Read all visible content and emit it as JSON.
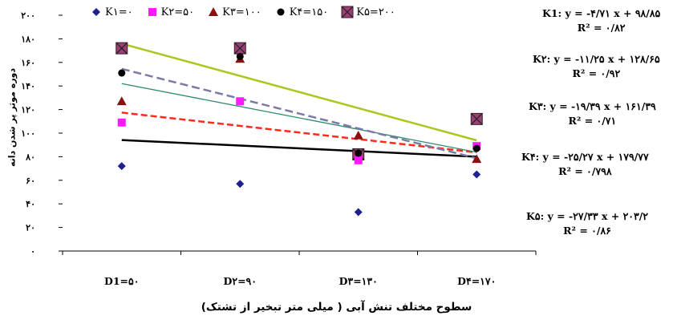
{
  "chart_data": {
    "type": "scatter",
    "x_axis_title": "سطوح مختلف تنش آبی ( میلی متر تبخیر از تشتک)",
    "y_axis_title": "دوره موثر پر شدن دانه",
    "categories": [
      "D1=۵۰",
      "D۲=۹۰",
      "D۳=۱۳۰",
      "D۴=۱۷۰"
    ],
    "yticks": [
      "۰",
      "۲۰",
      "۴۰",
      "۶۰",
      "۸۰",
      "۱۰۰",
      "۱۲۰",
      "۱۴۰",
      "۱۶۰",
      "۱۸۰",
      "۲۰۰"
    ],
    "ylim": [
      0,
      200
    ],
    "series": [
      {
        "name": "K۱=۰",
        "marker": "diamond",
        "color": "#1f1f8f",
        "values": [
          72,
          57,
          33,
          65
        ],
        "trend": {
          "slope": -4.71,
          "intercept": 98.85,
          "color": "#000000",
          "dash": "none"
        },
        "equation": "K1: y = -۴/۷۱ x + ۹۸/۸۵",
        "r2": "R² = ۰/۸۲"
      },
      {
        "name": "K۲=۵۰",
        "marker": "square",
        "color": "#ff19ff",
        "values": [
          109,
          127,
          77,
          89
        ],
        "trend": {
          "slope": -11.25,
          "intercept": 128.65,
          "color": "#ff2a1a",
          "dash": "8,4"
        },
        "equation": "K۲: y = -۱۱/۲۵ x + ۱۲۸/۶۵",
        "r2": "R² = ۰/۹۲"
      },
      {
        "name": "K۳=۱۰۰",
        "marker": "triangle",
        "color": "#8b1111",
        "values": [
          127,
          163,
          98,
          78
        ],
        "trend": {
          "slope": -19.39,
          "intercept": 161.39,
          "color": "#2e8b6a",
          "dash": "none"
        },
        "equation": "K۳: y = -۱۹/۳۹ x + ۱۶۱/۳۹",
        "r2": "R² = ۰/۷۱"
      },
      {
        "name": "K۴=۱۵۰",
        "marker": "circle",
        "color": "#000000",
        "values": [
          151,
          165,
          83,
          87
        ],
        "trend": {
          "slope": -25.27,
          "intercept": 179.77,
          "color": "#7a7aa6",
          "dash": "10,5"
        },
        "equation": "K۴: y = -۲۵/۲۷ x + ۱۷۹/۷۷",
        "r2": "R² = ۰/۷۹۸"
      },
      {
        "name": "K۵=۲۰۰",
        "marker": "xbox",
        "color": "#9b3f74",
        "values": [
          172,
          172,
          82,
          112
        ],
        "trend": {
          "slope": -27.33,
          "intercept": 203.2,
          "color": "#a8c820",
          "dash": "none"
        },
        "equation": "K۵: y = -۲۷/۳۳ x + ۲۰۳/۲",
        "r2": "R² = ۰/۸۶"
      }
    ],
    "grid": false,
    "legend_position": "top"
  }
}
